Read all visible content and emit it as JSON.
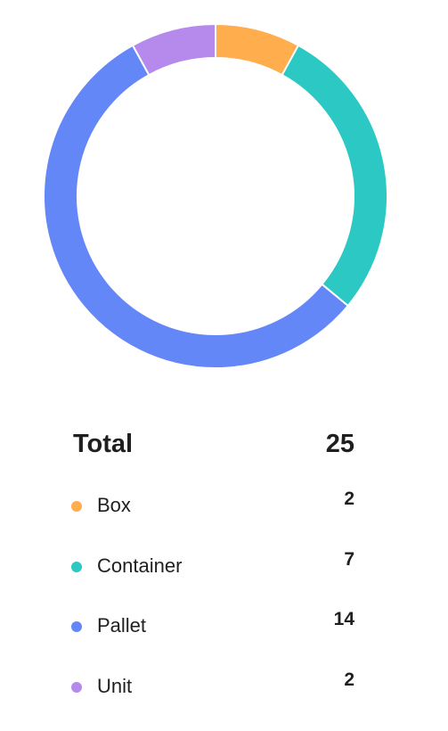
{
  "chart_data": {
    "type": "pie",
    "variant": "donut",
    "categories": [
      "Box",
      "Container",
      "Pallet",
      "Unit"
    ],
    "values": [
      2,
      7,
      14,
      2
    ],
    "colors": [
      "#FFAD4D",
      "#2BC8C4",
      "#6487F7",
      "#B689EC"
    ],
    "legend_position": "bottom",
    "total_label": "Total",
    "total_value": "25"
  },
  "legend": [
    {
      "label": "Box",
      "value": "2",
      "color": "#FFAD4D"
    },
    {
      "label": "Container",
      "value": "7",
      "color": "#2BC8C4"
    },
    {
      "label": "Pallet",
      "value": "14",
      "color": "#6487F7"
    },
    {
      "label": "Unit",
      "value": "2",
      "color": "#B689EC"
    }
  ]
}
